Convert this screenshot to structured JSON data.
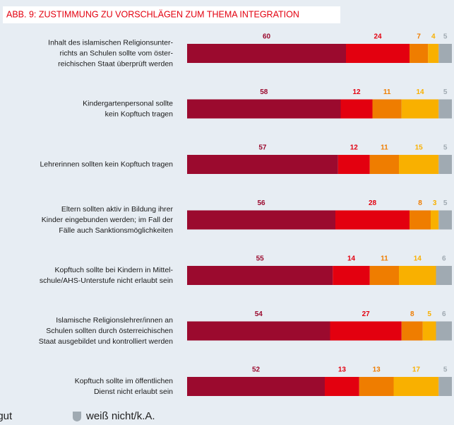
{
  "chart_data": {
    "type": "stacked-bar-horizontal",
    "title": "ABB. 9: ZUSTIMMUNG ZU VORSCHLÄGEN ZUM THEMA INTEGRATION",
    "categories": [
      [
        "Inhalt des islamischen Religionsunter-",
        "richts an Schulen sollte vom öster-",
        "reichischen Staat überprüft werden"
      ],
      [
        "Kindergartenpersonal sollte",
        "kein Kopftuch tragen"
      ],
      [
        "Lehrerinnen sollten kein Kopftuch tragen"
      ],
      [
        "Eltern sollten aktiv in Bildung ihrer",
        "Kinder eingebunden werden; im Fall der",
        "Fälle auch Sanktionsmöglichkeiten"
      ],
      [
        "Kopftuch sollte bei Kindern in Mittel-",
        "schule/AHS-Unterstufe nicht erlaubt sein"
      ],
      [
        "Islamische Religionslehrer/innen an",
        "Schulen sollten durch österreichischen",
        "Staat ausgebildet und kontrolliert werden"
      ],
      [
        "Kopftuch sollte im öffentlichen",
        "Dienst nicht erlaubt sein"
      ]
    ],
    "series": [
      {
        "color": "#9b0a2e",
        "values": [
          60,
          58,
          57,
          56,
          55,
          54,
          52
        ]
      },
      {
        "color": "#e3000f",
        "values": [
          24,
          12,
          12,
          28,
          14,
          27,
          13
        ]
      },
      {
        "color": "#ef7d00",
        "values": [
          7,
          11,
          11,
          8,
          11,
          8,
          13
        ]
      },
      {
        "name": "t gut",
        "color": "#f9b000",
        "values": [
          4,
          14,
          15,
          3,
          14,
          5,
          17
        ]
      },
      {
        "name": "weiß nicht/k.A.",
        "color": "#a0aab2",
        "values": [
          5,
          5,
          5,
          5,
          6,
          6,
          5
        ]
      }
    ],
    "xlim": [
      0,
      100
    ]
  }
}
